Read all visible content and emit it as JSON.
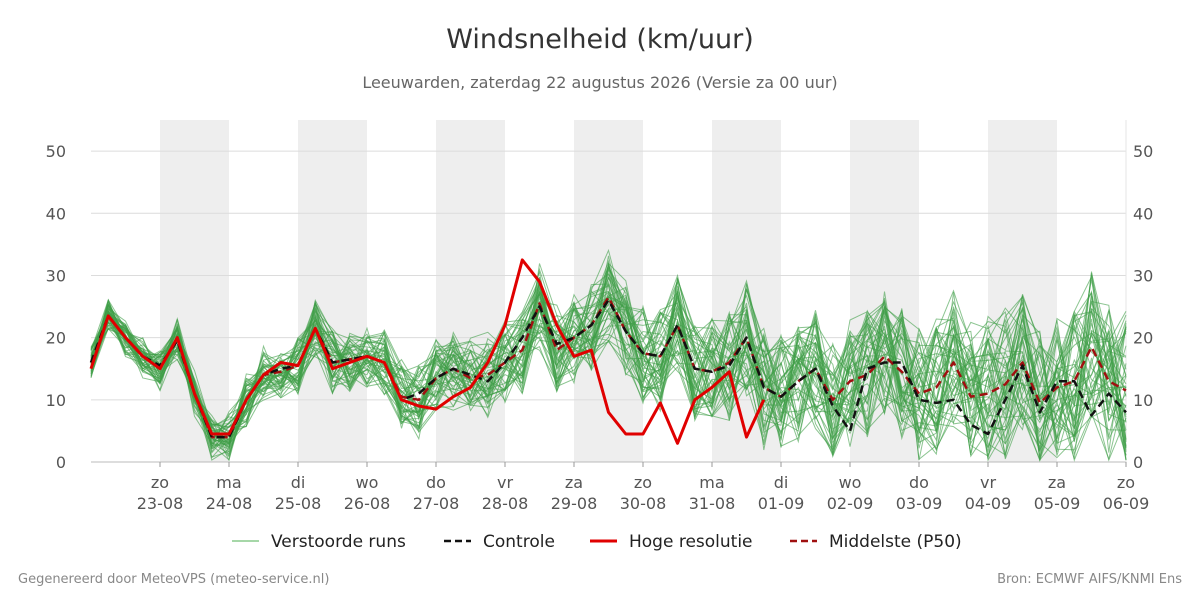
{
  "header": {
    "title": "Windsnelheid (km/uur)",
    "subtitle": "Leeuwarden, zaterdag 22 augustus 2026 (Versie za 00 uur)"
  },
  "footer": {
    "left": "Gegenereerd door MeteoVPS (meteo-service.nl)",
    "right": "Bron: ECMWF AIFS/KNMI Ens"
  },
  "chart_data": {
    "type": "line",
    "title": "Windsnelheid (km/uur)",
    "subtitle": "Leeuwarden, zaterdag 22 augustus 2026 (Versie za 00 uur)",
    "ylim": [
      0,
      55
    ],
    "yticks": [
      0,
      10,
      20,
      30,
      40,
      50
    ],
    "x_start_day": 22,
    "x_end_day": 37,
    "day_ticks": [
      {
        "x": 23,
        "day": "zo",
        "date": "23-08"
      },
      {
        "x": 24,
        "day": "ma",
        "date": "24-08"
      },
      {
        "x": 25,
        "day": "di",
        "date": "25-08"
      },
      {
        "x": 26,
        "day": "wo",
        "date": "26-08"
      },
      {
        "x": 27,
        "day": "do",
        "date": "27-08"
      },
      {
        "x": 28,
        "day": "vr",
        "date": "28-08"
      },
      {
        "x": 29,
        "day": "za",
        "date": "29-08"
      },
      {
        "x": 30,
        "day": "zo",
        "date": "30-08"
      },
      {
        "x": 31,
        "day": "ma",
        "date": "31-08"
      },
      {
        "x": 32,
        "day": "di",
        "date": "01-09"
      },
      {
        "x": 33,
        "day": "wo",
        "date": "02-09"
      },
      {
        "x": 34,
        "day": "do",
        "date": "03-09"
      },
      {
        "x": 35,
        "day": "vr",
        "date": "04-09"
      },
      {
        "x": 36,
        "day": "za",
        "date": "05-09"
      },
      {
        "x": 37,
        "day": "zo",
        "date": "06-09"
      }
    ],
    "shaded_days": [
      23,
      25,
      27,
      29,
      31,
      33,
      35
    ],
    "grid": true,
    "legend_position": "bottom",
    "legend": [
      {
        "label": "Verstoorde runs",
        "color": "#4caf50",
        "style": "thin"
      },
      {
        "label": "Controle",
        "color": "#111111",
        "style": "dashed"
      },
      {
        "label": "Hoge resolutie",
        "color": "#e00000",
        "style": "solid"
      },
      {
        "label": "Middelste (P50)",
        "color": "#a01010",
        "style": "dashed"
      }
    ],
    "series": [
      {
        "name": "Controle",
        "color": "#111111",
        "x": [
          22.0,
          22.25,
          22.5,
          22.75,
          23.0,
          23.25,
          23.5,
          23.75,
          24.0,
          24.25,
          24.5,
          24.75,
          25.0,
          25.25,
          25.5,
          25.75,
          26.0,
          26.25,
          26.5,
          26.75,
          27.0,
          27.25,
          27.5,
          27.75,
          28.0,
          28.25,
          28.5,
          28.75,
          29.0,
          29.25,
          29.5,
          29.75,
          30.0,
          30.25,
          30.5,
          30.75,
          31.0,
          31.25,
          31.5,
          31.75,
          32.0,
          32.25,
          32.5,
          32.75,
          33.0,
          33.25,
          33.5,
          33.75,
          34.0,
          34.25,
          34.5,
          34.75,
          35.0,
          35.25,
          35.5,
          35.75,
          36.0,
          36.25,
          36.5,
          36.75,
          37.0
        ],
        "y": [
          16,
          23.5,
          20,
          17,
          15.5,
          19.5,
          11,
          4,
          4,
          10,
          14,
          15,
          15.5,
          21.5,
          16,
          16.5,
          17,
          16,
          10,
          11,
          13.5,
          15,
          14,
          13,
          16,
          20,
          25,
          19,
          20,
          22,
          26,
          21,
          17.5,
          17,
          22,
          15,
          14.5,
          15.5,
          20,
          12,
          10.5,
          13,
          15,
          9,
          5,
          15,
          16,
          16,
          10,
          9.5,
          10,
          6,
          4.5,
          10,
          15.5,
          8,
          13,
          13,
          7.5,
          11,
          8
        ]
      },
      {
        "name": "Hoge resolutie",
        "color": "#e00000",
        "x": [
          22.0,
          22.25,
          22.5,
          22.75,
          23.0,
          23.25,
          23.5,
          23.75,
          24.0,
          24.25,
          24.5,
          24.75,
          25.0,
          25.25,
          25.5,
          25.75,
          26.0,
          26.25,
          26.5,
          26.75,
          27.0,
          27.25,
          27.5,
          27.75,
          28.0,
          28.25,
          28.5,
          28.75,
          29.0,
          29.25,
          29.5,
          29.75,
          30.0,
          30.25,
          30.5,
          30.75,
          31.0,
          31.25,
          31.5,
          31.75,
          32.0
        ],
        "y": [
          15,
          23.5,
          20,
          17,
          15,
          20,
          11,
          4.5,
          4.5,
          10,
          14,
          16,
          15.5,
          21.5,
          15,
          16,
          17,
          16,
          10,
          9,
          8.5,
          10.5,
          12,
          16,
          22,
          32.5,
          29,
          22,
          17,
          18,
          8,
          4.5,
          4.5,
          9.5,
          3,
          10,
          12,
          14.5,
          4,
          10,
          null
        ]
      },
      {
        "name": "Middelste (P50)",
        "color": "#a01010",
        "x": [
          22.0,
          22.25,
          22.5,
          22.75,
          23.0,
          23.25,
          23.5,
          23.75,
          24.0,
          24.25,
          24.5,
          24.75,
          25.0,
          25.25,
          25.5,
          25.75,
          26.0,
          26.25,
          26.5,
          26.75,
          27.0,
          27.25,
          27.5,
          27.75,
          28.0,
          28.25,
          28.5,
          28.75,
          29.0,
          29.25,
          29.5,
          29.75,
          30.0,
          30.25,
          30.5,
          30.75,
          31.0,
          31.25,
          31.5,
          31.75,
          32.0,
          32.25,
          32.5,
          32.75,
          33.0,
          33.25,
          33.5,
          33.75,
          34.0,
          34.25,
          34.5,
          34.75,
          35.0,
          35.25,
          35.5,
          35.75,
          36.0,
          36.25,
          36.5,
          36.75,
          37.0
        ],
        "y": [
          16,
          23.5,
          20,
          17,
          15,
          20,
          11,
          4,
          4,
          10,
          14,
          14.5,
          15.5,
          21.5,
          16,
          16.5,
          17,
          16,
          10.5,
          10,
          13.5,
          15,
          13.5,
          14,
          16,
          18,
          25.5,
          18,
          20,
          22,
          26.5,
          21,
          17.5,
          17,
          22,
          15,
          14.5,
          16,
          20,
          12,
          10.5,
          13,
          15,
          10,
          13,
          14,
          17,
          14.5,
          11,
          12,
          16,
          10.5,
          11,
          12.5,
          16,
          9.5,
          12,
          13,
          18.5,
          13,
          11.5
        ]
      }
    ]
  }
}
